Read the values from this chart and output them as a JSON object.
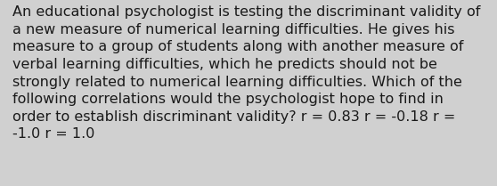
{
  "lines": [
    "An educational psychologist is testing the discriminant validity of",
    "a new measure of numerical learning difficulties. He gives his",
    "measure to a group of students along with another measure of",
    "verbal learning difficulties, which he predicts should not be",
    "strongly related to numerical learning difficulties. Which of the",
    "following correlations would the psychologist hope to find in",
    "order to establish discriminant validity? r = 0.83 r = -0.18 r =",
    "-1.0 r = 1.0"
  ],
  "background_color": "#d0d0d0",
  "text_color": "#1a1a1a",
  "font_size": 11.5,
  "fig_width": 5.58,
  "fig_height": 2.09,
  "dpi": 100
}
